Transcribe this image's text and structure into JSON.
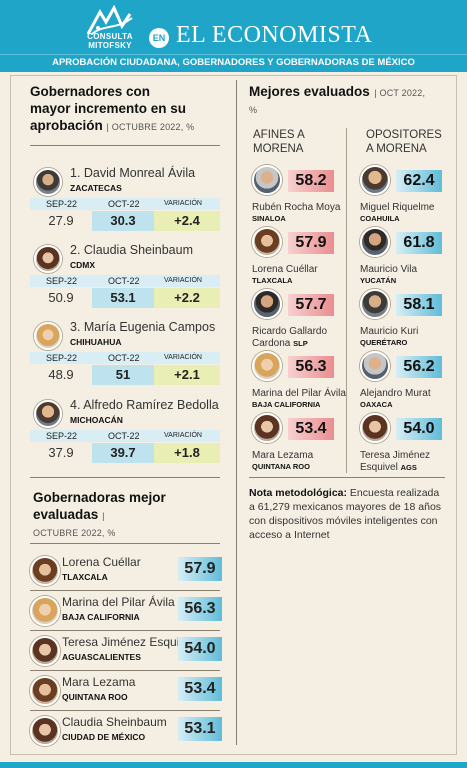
{
  "header": {
    "logo_text": "CONSULTA MITOFSKY",
    "en_label": "EN",
    "brand": "EL ECONOMISTA",
    "subtitle": "APROBACIÓN CIUDADANA, GOBERNADORES Y GOBERNADORAS DE MÉXICO"
  },
  "growth": {
    "title_line1": "Gobernadores con",
    "title_line2": "mayor incremento en su",
    "title_line3": "aprobación",
    "period": "| OCTUBRE 2022, %",
    "col_prev": "SEP-22",
    "col_curr": "OCT-22",
    "col_var": "VARIACIÓN",
    "rows": [
      {
        "name": "1. David Monreal Ávila",
        "state": "ZACATECAS",
        "prev": "27.9",
        "curr": "30.3",
        "var": "+2.4"
      },
      {
        "name": "2. Claudia Sheinbaum",
        "state": "CDMX",
        "prev": "50.9",
        "curr": "53.1",
        "var": "+2.2"
      },
      {
        "name": "3. María Eugenia Campos",
        "state": "CHIHUAHUA",
        "prev": "48.9",
        "curr": "51",
        "var": "+2.1"
      },
      {
        "name": "4. Alfredo Ramírez Bedolla",
        "state": "MICHOACÁN",
        "prev": "37.9",
        "curr": "39.7",
        "var": "+1.8"
      }
    ]
  },
  "best": {
    "title": "Mejores evaluados",
    "period_a": "| OCT 2022,",
    "period_b": "%",
    "col_left": [
      "AFINES A",
      "MORENA"
    ],
    "col_right": [
      "OPOSITORES",
      "A MORENA"
    ],
    "left": [
      {
        "name": "Rubén Rocha Moya",
        "name2": "",
        "state": "SINALOA",
        "score": "58.2"
      },
      {
        "name": "Lorena Cuéllar",
        "name2": "",
        "state": "TLAXCALA",
        "score": "57.9"
      },
      {
        "name": "Ricardo Gallardo",
        "name2": "Cardona",
        "state": "SLP",
        "score": "57.7"
      },
      {
        "name": "Marina del Pilar Ávila",
        "name2": "",
        "state": "BAJA CALIFORNIA",
        "score": "56.3"
      },
      {
        "name": "Mara Lezama",
        "name2": "",
        "state": "QUINTANA ROO",
        "score": "53.4"
      }
    ],
    "right": [
      {
        "name": "Miguel Riquelme",
        "name2": "",
        "state": "COAHUILA",
        "score": "62.4"
      },
      {
        "name": "Mauricio Vila",
        "name2": "",
        "state": "YUCATÁN",
        "score": "61.8"
      },
      {
        "name": "Mauricio Kuri",
        "name2": "",
        "state": "QUERÉTARO",
        "score": "58.1"
      },
      {
        "name": "Alejandro Murat",
        "name2": "",
        "state": "OAXACA",
        "score": "56.2"
      },
      {
        "name": "Teresa Jiménez",
        "name2": "Esquivel",
        "state": "AGS",
        "score": "54.0"
      }
    ]
  },
  "women": {
    "title_line1": "Gobernadoras mejor",
    "title_line2": "evaluadas",
    "title_sep": "|",
    "period": "OCTUBRE 2022, %",
    "rows": [
      {
        "name": "Lorena Cuéllar",
        "state": "TLAXCALA",
        "score": "57.9"
      },
      {
        "name": "Marina del Pilar Ávila",
        "state": "BAJA CALIFORNIA",
        "score": "56.3"
      },
      {
        "name": "Teresa Jiménez Esquivel",
        "state": "AGUASCALIENTES",
        "score": "54.0"
      },
      {
        "name": "Mara Lezama",
        "state": "QUINTANA ROO",
        "score": "53.4"
      },
      {
        "name": "Claudia Sheinbaum",
        "state": "CIUDAD DE MÉXICO",
        "score": "53.1"
      }
    ]
  },
  "note": {
    "label": "Nota metodológica:",
    "text": " Encuesta realizada a 61,279 mexicanos mayores de 18 años con dispositivos móviles inteligentes con acceso a Internet"
  },
  "colors": {
    "accent": "#1ea5c8",
    "afines": "#ea8d90",
    "opositores": "#5fbcd8",
    "variation": "#e9eeb5"
  }
}
